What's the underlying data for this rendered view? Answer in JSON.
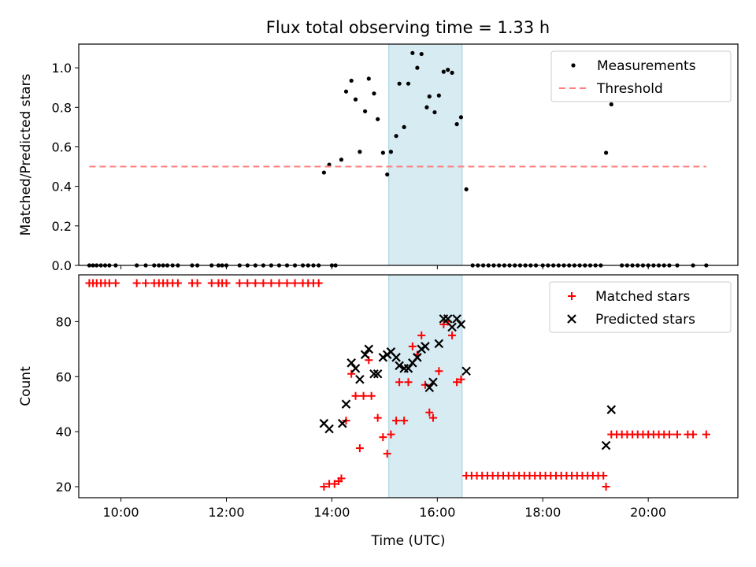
{
  "title": "Flux total observing time = 1.33 h",
  "shade_color": "#add8e6",
  "chart_data": [
    {
      "type": "scatter",
      "ylabel": "Matched/Predicted stars",
      "xlabel": "",
      "xlim": [
        9.2,
        21.7
      ],
      "ylim": [
        0,
        1.12
      ],
      "x_ticks": [
        10,
        12,
        14,
        16,
        18,
        20
      ],
      "y_ticks": [
        0.0,
        0.2,
        0.4,
        0.6,
        0.8,
        1.0
      ],
      "y_tick_labels": [
        "0.0",
        "0.2",
        "0.4",
        "0.6",
        "0.8",
        "1.0"
      ],
      "shaded_span": [
        15.08,
        16.47
      ],
      "legend": {
        "placement": "top-right",
        "entries": [
          "Measurements",
          "Threshold"
        ]
      },
      "series": [
        {
          "name": "Measurements",
          "color": "#000000",
          "marker": "dot",
          "points": [
            [
              9.4,
              0
            ],
            [
              9.47,
              0
            ],
            [
              9.54,
              0
            ],
            [
              9.62,
              0
            ],
            [
              9.7,
              0
            ],
            [
              9.78,
              0
            ],
            [
              9.9,
              0
            ],
            [
              10.3,
              0
            ],
            [
              10.47,
              0
            ],
            [
              10.63,
              0
            ],
            [
              10.72,
              0
            ],
            [
              10.8,
              0
            ],
            [
              10.88,
              0
            ],
            [
              10.98,
              0
            ],
            [
              11.08,
              0
            ],
            [
              11.35,
              0
            ],
            [
              11.45,
              0
            ],
            [
              11.72,
              0
            ],
            [
              11.85,
              0
            ],
            [
              11.92,
              0
            ],
            [
              12.0,
              0
            ],
            [
              12.25,
              0
            ],
            [
              12.4,
              0
            ],
            [
              12.55,
              0
            ],
            [
              12.7,
              0
            ],
            [
              12.85,
              0
            ],
            [
              13.0,
              0
            ],
            [
              13.15,
              0
            ],
            [
              13.3,
              0
            ],
            [
              13.45,
              0
            ],
            [
              13.55,
              0
            ],
            [
              13.65,
              0
            ],
            [
              13.75,
              0
            ],
            [
              14.0,
              0
            ],
            [
              14.07,
              0
            ],
            [
              13.85,
              0.47
            ],
            [
              13.95,
              0.51
            ],
            [
              14.18,
              0.535
            ],
            [
              14.27,
              0.88
            ],
            [
              14.37,
              0.935
            ],
            [
              14.45,
              0.84
            ],
            [
              14.53,
              0.575
            ],
            [
              14.63,
              0.78
            ],
            [
              14.7,
              0.945
            ],
            [
              14.8,
              0.87
            ],
            [
              14.87,
              0.74
            ],
            [
              14.97,
              0.57
            ],
            [
              15.05,
              0.46
            ],
            [
              15.12,
              0.575
            ],
            [
              15.22,
              0.655
            ],
            [
              15.28,
              0.92
            ],
            [
              15.37,
              0.7
            ],
            [
              15.45,
              0.92
            ],
            [
              15.53,
              1.075
            ],
            [
              15.62,
              1.0
            ],
            [
              15.7,
              1.07
            ],
            [
              15.8,
              0.8
            ],
            [
              15.85,
              0.855
            ],
            [
              15.95,
              0.775
            ],
            [
              16.03,
              0.86
            ],
            [
              16.12,
              0.98
            ],
            [
              16.2,
              0.99
            ],
            [
              16.28,
              0.975
            ],
            [
              16.37,
              0.715
            ],
            [
              16.45,
              0.75
            ],
            [
              16.55,
              0.385
            ],
            [
              16.67,
              0
            ],
            [
              16.77,
              0
            ],
            [
              16.87,
              0
            ],
            [
              16.97,
              0
            ],
            [
              17.07,
              0
            ],
            [
              17.17,
              0
            ],
            [
              17.27,
              0
            ],
            [
              17.37,
              0
            ],
            [
              17.47,
              0
            ],
            [
              17.57,
              0
            ],
            [
              17.67,
              0
            ],
            [
              17.77,
              0
            ],
            [
              17.87,
              0
            ],
            [
              18.0,
              0
            ],
            [
              18.1,
              0
            ],
            [
              18.2,
              0
            ],
            [
              18.3,
              0
            ],
            [
              18.4,
              0
            ],
            [
              18.5,
              0
            ],
            [
              18.6,
              0
            ],
            [
              18.7,
              0
            ],
            [
              18.8,
              0
            ],
            [
              18.9,
              0
            ],
            [
              19.0,
              0
            ],
            [
              19.1,
              0
            ],
            [
              19.2,
              0.57
            ],
            [
              19.3,
              0.815
            ],
            [
              19.5,
              0
            ],
            [
              19.6,
              0
            ],
            [
              19.7,
              0
            ],
            [
              19.8,
              0
            ],
            [
              19.9,
              0
            ],
            [
              20.0,
              0
            ],
            [
              20.1,
              0
            ],
            [
              20.2,
              0
            ],
            [
              20.3,
              0
            ],
            [
              20.4,
              0
            ],
            [
              20.55,
              0
            ],
            [
              20.85,
              0
            ],
            [
              21.1,
              0
            ]
          ]
        },
        {
          "name": "Threshold",
          "color": "#ff8080",
          "line_style": "dashed",
          "x": [
            9.4,
            21.1
          ],
          "y": [
            0.5,
            0.5
          ]
        }
      ]
    },
    {
      "type": "scatter",
      "ylabel": "Count",
      "xlabel": "Time (UTC)",
      "xlim": [
        9.2,
        21.7
      ],
      "ylim": [
        16,
        97
      ],
      "x_ticks": [
        10,
        12,
        14,
        16,
        18,
        20
      ],
      "x_tick_labels": [
        "10:00",
        "12:00",
        "14:00",
        "16:00",
        "18:00",
        "20:00"
      ],
      "y_ticks": [
        20,
        40,
        60,
        80
      ],
      "y_tick_labels": [
        "20",
        "40",
        "60",
        "80"
      ],
      "shaded_span": [
        15.08,
        16.47
      ],
      "legend": {
        "placement": "top-right",
        "entries": [
          "Matched stars",
          "Predicted stars"
        ]
      },
      "series": [
        {
          "name": "Matched stars",
          "color": "#ff0000",
          "marker": "plus",
          "points": [
            [
              9.4,
              94
            ],
            [
              9.47,
              94
            ],
            [
              9.54,
              94
            ],
            [
              9.62,
              94
            ],
            [
              9.7,
              94
            ],
            [
              9.78,
              94
            ],
            [
              9.9,
              94
            ],
            [
              10.3,
              94
            ],
            [
              10.47,
              94
            ],
            [
              10.63,
              94
            ],
            [
              10.72,
              94
            ],
            [
              10.8,
              94
            ],
            [
              10.88,
              94
            ],
            [
              10.98,
              94
            ],
            [
              11.08,
              94
            ],
            [
              11.35,
              94
            ],
            [
              11.45,
              94
            ],
            [
              11.72,
              94
            ],
            [
              11.85,
              94
            ],
            [
              11.92,
              94
            ],
            [
              12.0,
              94
            ],
            [
              12.25,
              94
            ],
            [
              12.4,
              94
            ],
            [
              12.55,
              94
            ],
            [
              12.7,
              94
            ],
            [
              12.85,
              94
            ],
            [
              13.0,
              94
            ],
            [
              13.15,
              94
            ],
            [
              13.3,
              94
            ],
            [
              13.45,
              94
            ],
            [
              13.55,
              94
            ],
            [
              13.65,
              94
            ],
            [
              13.75,
              94
            ],
            [
              13.85,
              20
            ],
            [
              13.95,
              21
            ],
            [
              14.05,
              21
            ],
            [
              14.13,
              22
            ],
            [
              14.18,
              23
            ],
            [
              14.27,
              44
            ],
            [
              14.37,
              61
            ],
            [
              14.45,
              53
            ],
            [
              14.53,
              34
            ],
            [
              14.6,
              53
            ],
            [
              14.7,
              66
            ],
            [
              14.75,
              53
            ],
            [
              14.87,
              45
            ],
            [
              14.97,
              38
            ],
            [
              15.05,
              32
            ],
            [
              15.12,
              39
            ],
            [
              15.22,
              44
            ],
            [
              15.28,
              58
            ],
            [
              15.37,
              44
            ],
            [
              15.45,
              58
            ],
            [
              15.53,
              71
            ],
            [
              15.62,
              68
            ],
            [
              15.7,
              75
            ],
            [
              15.77,
              57
            ],
            [
              15.85,
              47
            ],
            [
              15.92,
              45
            ],
            [
              16.03,
              62
            ],
            [
              16.12,
              79
            ],
            [
              16.2,
              80
            ],
            [
              16.28,
              75
            ],
            [
              16.37,
              58
            ],
            [
              16.45,
              59
            ],
            [
              16.55,
              24
            ],
            [
              16.65,
              24
            ],
            [
              16.75,
              24
            ],
            [
              16.85,
              24
            ],
            [
              16.95,
              24
            ],
            [
              17.05,
              24
            ],
            [
              17.15,
              24
            ],
            [
              17.25,
              24
            ],
            [
              17.35,
              24
            ],
            [
              17.45,
              24
            ],
            [
              17.55,
              24
            ],
            [
              17.65,
              24
            ],
            [
              17.75,
              24
            ],
            [
              17.85,
              24
            ],
            [
              17.95,
              24
            ],
            [
              18.05,
              24
            ],
            [
              18.15,
              24
            ],
            [
              18.25,
              24
            ],
            [
              18.35,
              24
            ],
            [
              18.45,
              24
            ],
            [
              18.55,
              24
            ],
            [
              18.65,
              24
            ],
            [
              18.75,
              24
            ],
            [
              18.85,
              24
            ],
            [
              18.95,
              24
            ],
            [
              19.05,
              24
            ],
            [
              19.15,
              24
            ],
            [
              19.2,
              20
            ],
            [
              19.3,
              39
            ],
            [
              19.4,
              39
            ],
            [
              19.5,
              39
            ],
            [
              19.6,
              39
            ],
            [
              19.7,
              39
            ],
            [
              19.8,
              39
            ],
            [
              19.9,
              39
            ],
            [
              20.0,
              39
            ],
            [
              20.1,
              39
            ],
            [
              20.2,
              39
            ],
            [
              20.3,
              39
            ],
            [
              20.4,
              39
            ],
            [
              20.55,
              39
            ],
            [
              20.75,
              39
            ],
            [
              20.85,
              39
            ],
            [
              21.1,
              39
            ]
          ]
        },
        {
          "name": "Predicted stars",
          "color": "#000000",
          "marker": "x",
          "points": [
            [
              13.85,
              43
            ],
            [
              13.95,
              41
            ],
            [
              14.2,
              43
            ],
            [
              14.27,
              50
            ],
            [
              14.37,
              65
            ],
            [
              14.45,
              63
            ],
            [
              14.53,
              59
            ],
            [
              14.63,
              68
            ],
            [
              14.7,
              70
            ],
            [
              14.8,
              61
            ],
            [
              14.87,
              61
            ],
            [
              14.97,
              67
            ],
            [
              15.05,
              68
            ],
            [
              15.12,
              69
            ],
            [
              15.22,
              67
            ],
            [
              15.28,
              64
            ],
            [
              15.37,
              63
            ],
            [
              15.45,
              63
            ],
            [
              15.53,
              65
            ],
            [
              15.62,
              67
            ],
            [
              15.7,
              70
            ],
            [
              15.77,
              71
            ],
            [
              15.85,
              56
            ],
            [
              15.92,
              58
            ],
            [
              16.03,
              72
            ],
            [
              16.12,
              81
            ],
            [
              16.2,
              81
            ],
            [
              16.28,
              78
            ],
            [
              16.37,
              81
            ],
            [
              16.45,
              79
            ],
            [
              16.55,
              62
            ],
            [
              19.2,
              35
            ],
            [
              19.3,
              48
            ]
          ]
        }
      ]
    }
  ]
}
